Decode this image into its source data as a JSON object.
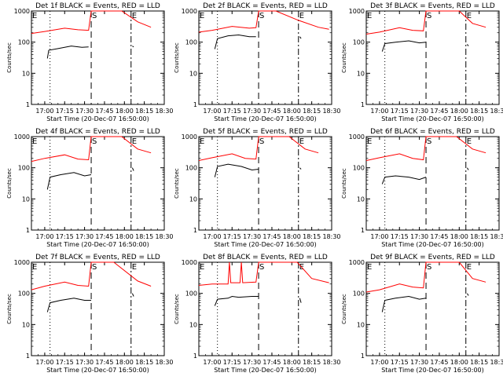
{
  "chart_data": {
    "type": "line",
    "layout": "3x3 grid",
    "yscale": "log",
    "ylim": [
      1,
      1000
    ],
    "yticks": [
      "1",
      "10",
      "100",
      "1000"
    ],
    "ylabel": "Counts/sec",
    "xlabel": "Start Time (20-Dec-07 16:50:00)",
    "xlim": [
      "16:50",
      "18:30"
    ],
    "xticks": [
      "17:00",
      "17:15",
      "17:30",
      "17:45",
      "18:00",
      "18:15",
      "18:30"
    ],
    "series_colors": {
      "Events": "#000000",
      "LLD": "#ff0000"
    },
    "markers": [
      {
        "label": "E",
        "time": "16:50",
        "style": "solid"
      },
      {
        "time": "17:04",
        "style": "dotted"
      },
      {
        "label": "S",
        "time": "17:35",
        "style": "dashed"
      },
      {
        "label": "E",
        "time": "18:05",
        "style": "dashdot"
      }
    ],
    "panels": [
      {
        "title": "Det 1f BLACK = Events, RED = LLD",
        "events": [
          [
            "17:02",
            30
          ],
          [
            "17:03",
            55
          ],
          [
            "17:10",
            62
          ],
          [
            "17:20",
            75
          ],
          [
            "17:28",
            68
          ],
          [
            "17:33",
            70
          ],
          [
            "18:06",
            75
          ],
          [
            "18:07",
            70
          ]
        ],
        "lld": [
          [
            "16:50",
            190
          ],
          [
            "17:00",
            220
          ],
          [
            "17:15",
            280
          ],
          [
            "17:25",
            250
          ],
          [
            "17:33",
            240
          ],
          [
            "17:35",
            1000
          ],
          [
            "17:58",
            1000
          ],
          [
            "18:10",
            450
          ],
          [
            "18:20",
            300
          ]
        ]
      },
      {
        "title": "Det 2f BLACK = Events, RED = LLD",
        "events": [
          [
            "17:02",
            60
          ],
          [
            "17:04",
            130
          ],
          [
            "17:12",
            160
          ],
          [
            "17:20",
            170
          ],
          [
            "17:28",
            150
          ],
          [
            "17:33",
            150
          ],
          [
            "18:06",
            150
          ],
          [
            "18:07",
            130
          ]
        ],
        "lld": [
          [
            "16:50",
            210
          ],
          [
            "17:00",
            240
          ],
          [
            "17:15",
            320
          ],
          [
            "17:28",
            280
          ],
          [
            "17:33",
            290
          ],
          [
            "17:35",
            1000
          ],
          [
            "17:48",
            1000
          ],
          [
            "18:05",
            500
          ],
          [
            "18:20",
            300
          ],
          [
            "18:28",
            260
          ]
        ]
      },
      {
        "title": "Det 3f BLACK = Events, RED = LLD",
        "events": [
          [
            "17:02",
            50
          ],
          [
            "17:04",
            90
          ],
          [
            "17:12",
            100
          ],
          [
            "17:22",
            110
          ],
          [
            "17:30",
            95
          ],
          [
            "17:35",
            100
          ],
          [
            "18:06",
            85
          ],
          [
            "18:07",
            75
          ]
        ],
        "lld": [
          [
            "16:50",
            180
          ],
          [
            "17:00",
            210
          ],
          [
            "17:15",
            290
          ],
          [
            "17:25",
            240
          ],
          [
            "17:33",
            230
          ],
          [
            "17:35",
            1000
          ],
          [
            "18:00",
            1000
          ],
          [
            "18:10",
            400
          ],
          [
            "18:20",
            300
          ]
        ]
      },
      {
        "title": "Det 4f BLACK = Events, RED = LLD",
        "events": [
          [
            "17:02",
            20
          ],
          [
            "17:04",
            50
          ],
          [
            "17:12",
            60
          ],
          [
            "17:22",
            70
          ],
          [
            "17:30",
            55
          ],
          [
            "17:35",
            60
          ],
          [
            "18:06",
            100
          ],
          [
            "18:07",
            80
          ]
        ],
        "lld": [
          [
            "16:50",
            160
          ],
          [
            "17:00",
            200
          ],
          [
            "17:15",
            260
          ],
          [
            "17:25",
            190
          ],
          [
            "17:33",
            180
          ],
          [
            "17:35",
            1000
          ],
          [
            "17:58",
            1000
          ],
          [
            "18:10",
            400
          ],
          [
            "18:20",
            300
          ]
        ]
      },
      {
        "title": "Det 5f BLACK = Events, RED = LLD",
        "events": [
          [
            "17:02",
            50
          ],
          [
            "17:04",
            110
          ],
          [
            "17:12",
            130
          ],
          [
            "17:22",
            110
          ],
          [
            "17:30",
            85
          ],
          [
            "17:35",
            90
          ],
          [
            "18:06",
            100
          ],
          [
            "18:07",
            90
          ]
        ],
        "lld": [
          [
            "16:50",
            170
          ],
          [
            "17:00",
            210
          ],
          [
            "17:15",
            280
          ],
          [
            "17:25",
            200
          ],
          [
            "17:33",
            190
          ],
          [
            "17:35",
            1000
          ],
          [
            "17:58",
            1000
          ],
          [
            "18:10",
            400
          ],
          [
            "18:20",
            300
          ]
        ]
      },
      {
        "title": "Det 6f BLACK = Events, RED = LLD",
        "events": [
          [
            "17:02",
            30
          ],
          [
            "17:04",
            50
          ],
          [
            "17:12",
            55
          ],
          [
            "17:22",
            50
          ],
          [
            "17:30",
            42
          ],
          [
            "17:35",
            50
          ],
          [
            "18:06",
            100
          ],
          [
            "18:07",
            85
          ]
        ],
        "lld": [
          [
            "16:50",
            170
          ],
          [
            "17:00",
            210
          ],
          [
            "17:15",
            280
          ],
          [
            "17:25",
            200
          ],
          [
            "17:33",
            180
          ],
          [
            "17:35",
            1000
          ],
          [
            "17:58",
            1000
          ],
          [
            "18:10",
            400
          ],
          [
            "18:20",
            300
          ]
        ]
      },
      {
        "title": "Det 7f BLACK = Events, RED = LLD",
        "events": [
          [
            "17:02",
            25
          ],
          [
            "17:04",
            50
          ],
          [
            "17:12",
            60
          ],
          [
            "17:22",
            70
          ],
          [
            "17:30",
            60
          ],
          [
            "17:35",
            60
          ],
          [
            "18:06",
            100
          ],
          [
            "18:07",
            80
          ]
        ],
        "lld": [
          [
            "16:50",
            130
          ],
          [
            "17:00",
            170
          ],
          [
            "17:15",
            230
          ],
          [
            "17:25",
            180
          ],
          [
            "17:33",
            170
          ],
          [
            "17:35",
            1000
          ],
          [
            "17:52",
            1000
          ],
          [
            "18:10",
            250
          ],
          [
            "18:20",
            170
          ]
        ]
      },
      {
        "title": "Det 8f BLACK = Events, RED = LLD",
        "events": [
          [
            "17:02",
            40
          ],
          [
            "17:04",
            65
          ],
          [
            "17:12",
            70
          ],
          [
            "17:15",
            80
          ],
          [
            "17:20",
            75
          ],
          [
            "17:30",
            80
          ],
          [
            "17:35",
            80
          ],
          [
            "18:06",
            70
          ],
          [
            "18:07",
            50
          ]
        ],
        "lld": [
          [
            "16:50",
            180
          ],
          [
            "17:00",
            200
          ],
          [
            "17:12",
            200
          ],
          [
            "17:13",
            1000
          ],
          [
            "17:14",
            220
          ],
          [
            "17:21",
            220
          ],
          [
            "17:22",
            1000
          ],
          [
            "17:23",
            220
          ],
          [
            "17:33",
            230
          ],
          [
            "17:35",
            1000
          ],
          [
            "18:04",
            1000
          ],
          [
            "18:15",
            300
          ],
          [
            "18:28",
            220
          ]
        ]
      },
      {
        "title": "Det 9f BLACK = Events, RED = LLD",
        "events": [
          [
            "17:02",
            25
          ],
          [
            "17:04",
            60
          ],
          [
            "17:12",
            70
          ],
          [
            "17:22",
            80
          ],
          [
            "17:30",
            65
          ],
          [
            "17:35",
            70
          ],
          [
            "18:06",
            100
          ],
          [
            "18:07",
            85
          ]
        ],
        "lld": [
          [
            "16:50",
            110
          ],
          [
            "17:00",
            130
          ],
          [
            "17:15",
            200
          ],
          [
            "17:25",
            160
          ],
          [
            "17:33",
            150
          ],
          [
            "17:35",
            1000
          ],
          [
            "18:00",
            1000
          ],
          [
            "18:10",
            300
          ],
          [
            "18:20",
            230
          ]
        ]
      }
    ]
  }
}
